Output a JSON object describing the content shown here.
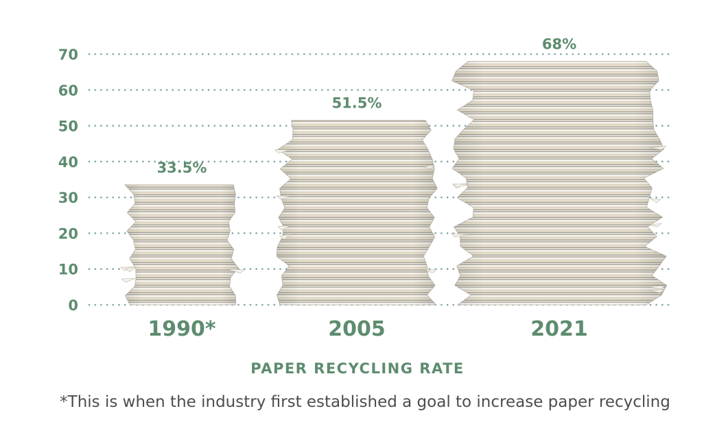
{
  "chart_data": {
    "type": "bar",
    "categories": [
      "1990*",
      "2005",
      "2021"
    ],
    "values": [
      33.5,
      51.5,
      68
    ],
    "value_labels": [
      "33.5%",
      "51.5%",
      "68%"
    ],
    "ylim": [
      0,
      70
    ],
    "yticks": [
      "0",
      "10",
      "20",
      "30",
      "40",
      "50",
      "60",
      "70"
    ],
    "xlabel": "PAPER RECYCLING RATE",
    "grid": true,
    "bar_style": "stacks of paper",
    "colors": {
      "accent": "#5e8c6f",
      "grid": "#7fa8a2",
      "paper_light": "#f2efe6",
      "paper_mid": "#d9d3c4",
      "paper_dark": "#a9a69f",
      "paper_tan": "#e3d5b9"
    }
  },
  "footnote": "*This is when the industry first established a goal to increase paper recycling"
}
